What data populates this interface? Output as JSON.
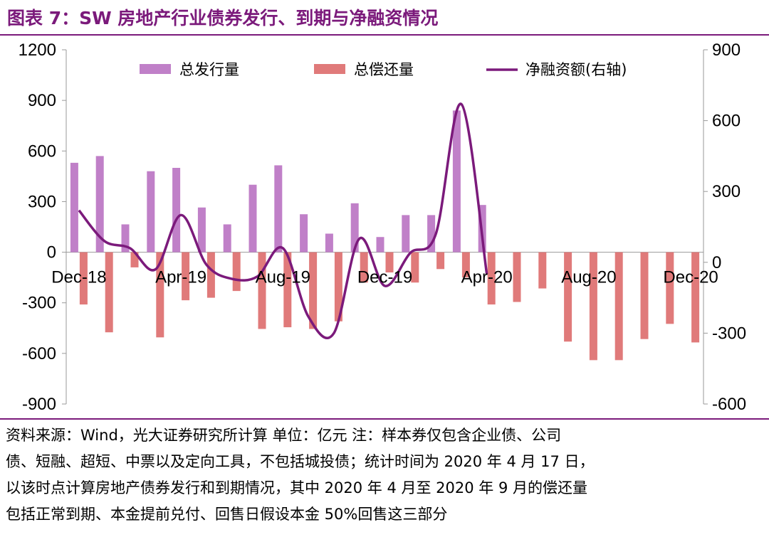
{
  "title": "图表 7：SW 房地产行业债券发行、到期与净融资情况",
  "note_lines": [
    "资料来源：Wind，光大证券研究所计算  单位：亿元  注：样本券仅包含企业债、公司",
    "债、短融、超短、中票以及定向工具，不包括城投债；统计时间为 2020 年 4 月 17 日，",
    "以该时点计算房地产债券发行和到期情况，其中 2020 年 4 月至 2020 年 9 月的偿还量",
    "包括正常到期、本金提前兑付、回售日假设本金 50%回售这三部分"
  ],
  "colors": {
    "issuance": "#c080c8",
    "repayment": "#e07a7a",
    "net": "#7b1a7b",
    "title": "#7b1a7b"
  },
  "chart_data": {
    "type": "bar",
    "categories": [
      "Dec-18",
      "Jan-19",
      "Feb-19",
      "Mar-19",
      "Apr-19",
      "May-19",
      "Jun-19",
      "Jul-19",
      "Aug-19",
      "Sep-19",
      "Oct-19",
      "Nov-19",
      "Dec-19",
      "Jan-20",
      "Feb-20",
      "Mar-20",
      "Apr-20",
      "May-20",
      "Jun-20",
      "Jul-20",
      "Aug-20",
      "Sep-20",
      "Oct-20",
      "Nov-20",
      "Dec-20"
    ],
    "x_tick_labels": [
      "Dec-18",
      "Apr-19",
      "Aug-19",
      "Dec-19",
      "Apr-20",
      "Aug-20",
      "Dec-20"
    ],
    "ylim": [
      -900,
      1200
    ],
    "yticks": [
      1200,
      900,
      600,
      300,
      0,
      -300,
      -600,
      -900
    ],
    "y2lim": [
      -600,
      900
    ],
    "y2ticks": [
      900,
      600,
      300,
      0,
      -300,
      -600
    ],
    "legend_position": "top",
    "series": [
      {
        "name": "总发行量",
        "type": "bar",
        "axis": "left",
        "values": [
          530,
          570,
          165,
          480,
          500,
          265,
          165,
          400,
          515,
          225,
          110,
          290,
          90,
          220,
          220,
          840,
          280,
          0,
          0,
          0,
          0,
          0,
          0,
          0,
          0
        ]
      },
      {
        "name": "总偿还量",
        "type": "bar",
        "axis": "left",
        "values": [
          -310,
          -475,
          -90,
          -505,
          -285,
          -270,
          -230,
          -455,
          -445,
          -455,
          -410,
          -180,
          -120,
          -180,
          -100,
          -150,
          -310,
          -295,
          -215,
          -530,
          -640,
          -640,
          -515,
          -425,
          -535
        ]
      },
      {
        "name": "净融资额(右轴)",
        "type": "line",
        "axis": "right",
        "values": [
          220,
          90,
          60,
          -30,
          200,
          -10,
          -70,
          -60,
          60,
          -230,
          -300,
          100,
          -100,
          40,
          120,
          670,
          -50,
          null,
          null,
          null,
          null,
          null,
          null,
          null,
          null
        ]
      }
    ]
  }
}
